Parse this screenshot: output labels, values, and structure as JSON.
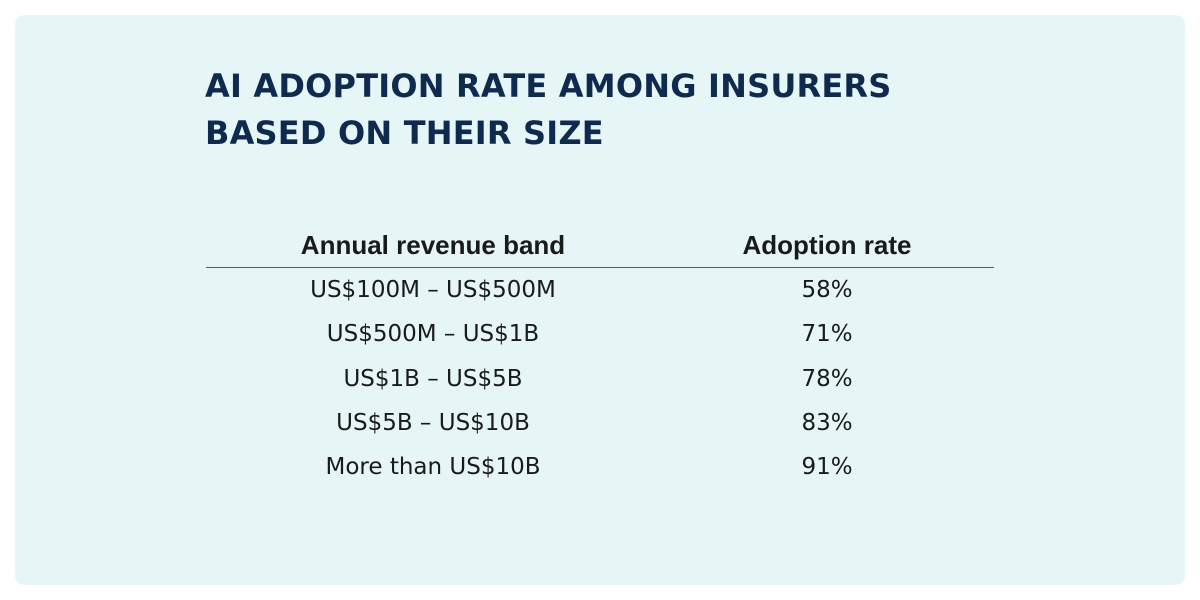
{
  "title": {
    "line1": "AI ADOPTION RATE AMONG INSURERS",
    "line2": "BASED ON THEIR SIZE"
  },
  "chart_data": {
    "type": "table",
    "columns": [
      "Annual revenue band",
      "Adoption rate"
    ],
    "rows": [
      [
        "US$100M – US$500M",
        "58%"
      ],
      [
        "US$500M – US$1B",
        "71%"
      ],
      [
        "US$1B – US$5B",
        "78%"
      ],
      [
        "US$5B – US$10B",
        "83%"
      ],
      [
        "More than US$10B",
        "91%"
      ]
    ],
    "values": [
      58,
      71,
      78,
      83,
      91
    ]
  },
  "colors": {
    "background": "#e6f6f7",
    "title": "#0e2a4f",
    "rule": "#2e6a80"
  }
}
